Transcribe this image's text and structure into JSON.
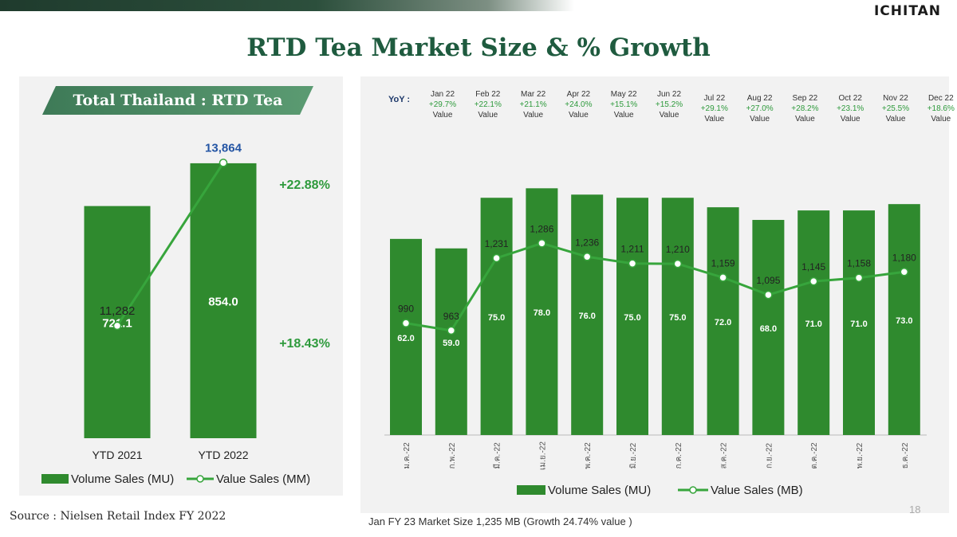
{
  "header": {
    "logo": "ICHITAN",
    "title": "RTD Tea Market Size & % Growth"
  },
  "colors": {
    "bar": "#2f8a2e",
    "bar_dark": "#236b23",
    "line": "#37a53c",
    "title": "#1f5b3f",
    "growth": "#2e9a3c",
    "value_blue": "#2455a4"
  },
  "left": {
    "banner": "Total Thailand : RTD Tea",
    "value_growth_label": "+22.88%",
    "volume_growth_label": "+18.43%",
    "legend": {
      "volume": "Volume Sales (MU)",
      "value": "Value Sales (MM)"
    }
  },
  "right": {
    "yoy_label": "YoY :",
    "legend": {
      "volume": "Volume Sales (MU)",
      "value": "Value Sales (MB)"
    },
    "footnote": "Jan FY 23 Market Size 1,235 MB (Growth 24.74% value )",
    "page_number": "18"
  },
  "source": "Source : Nielsen Retail Index  FY 2022",
  "chart_data": [
    {
      "type": "bar",
      "title": "Total Thailand : RTD Tea",
      "categories": [
        "YTD 2021",
        "YTD 2022"
      ],
      "series": [
        {
          "name": "Volume Sales (MU)",
          "type": "bar",
          "values": [
            721.1,
            854.0
          ],
          "labels": [
            "721.1",
            "854.0"
          ]
        },
        {
          "name": "Value Sales (MM)",
          "type": "line",
          "values": [
            11282,
            13864
          ],
          "labels": [
            "11,282",
            "13,864"
          ]
        }
      ],
      "growth": {
        "value": "+22.88%",
        "volume": "+18.43%"
      },
      "ylim_volume": [
        0,
        980
      ],
      "ylim_value": [
        9500,
        14500
      ]
    },
    {
      "type": "bar",
      "categories": [
        "ม.ค.-22",
        "ก.พ.-22",
        "มี.ค.-22",
        "เม.ย.-22",
        "พ.ค.-22",
        "มิ.ย.-22",
        "ก.ค.-22",
        "ส.ค.-22",
        "ก.ย.-22",
        "ต.ค.-22",
        "พ.ย.-22",
        "ธ.ค.-22"
      ],
      "yoy": [
        {
          "month": "Jan 22",
          "growth": "+29.7%",
          "label": "Value"
        },
        {
          "month": "Feb 22",
          "growth": "+22.1%",
          "label": "Value"
        },
        {
          "month": "Mar 22",
          "growth": "+21.1%",
          "label": "Value"
        },
        {
          "month": "Apr 22",
          "growth": "+24.0%",
          "label": "Value"
        },
        {
          "month": "May 22",
          "growth": "+15.1%",
          "label": "Value"
        },
        {
          "month": "Jun 22",
          "growth": "+15.2%",
          "label": "Value"
        },
        {
          "month": "Jul 22",
          "growth": "+29.1%",
          "label": "Value"
        },
        {
          "month": "Aug 22",
          "growth": "+27.0%",
          "label": "Value"
        },
        {
          "month": "Sep 22",
          "growth": "+28.2%",
          "label": "Value"
        },
        {
          "month": "Oct 22",
          "growth": "+23.1%",
          "label": "Value"
        },
        {
          "month": "Nov 22",
          "growth": "+25.5%",
          "label": "Value"
        },
        {
          "month": "Dec 22",
          "growth": "+18.6%",
          "label": "Value"
        }
      ],
      "series": [
        {
          "name": "Volume Sales (MU)",
          "type": "bar",
          "values": [
            62.0,
            59.0,
            75.0,
            78.0,
            76.0,
            75.0,
            75.0,
            72.0,
            68.0,
            71.0,
            71.0,
            73.0
          ],
          "labels": [
            "62.0",
            "59.0",
            "75.0",
            "78.0",
            "76.0",
            "75.0",
            "75.0",
            "72.0",
            "68.0",
            "71.0",
            "71.0",
            "73.0"
          ]
        },
        {
          "name": "Value Sales (MB)",
          "type": "line",
          "values": [
            990,
            963,
            1231,
            1286,
            1236,
            1211,
            1210,
            1159,
            1095,
            1145,
            1158,
            1180
          ],
          "labels": [
            "990",
            "963",
            "1,231",
            "1,286",
            "1,236",
            "1,211",
            "1,210",
            "1,159",
            "1,095",
            "1,145",
            "1,158",
            "1,180"
          ]
        }
      ],
      "ylim_volume": [
        0,
        80.6
      ],
      "ylim_value": [
        576,
        1520
      ]
    }
  ]
}
